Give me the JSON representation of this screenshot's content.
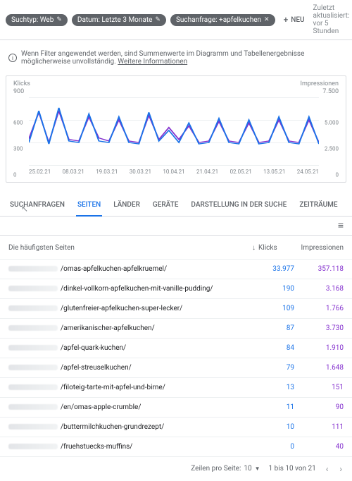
{
  "topbar": {
    "chips": [
      {
        "label": "Suchtyp: Web",
        "trailing": "pen"
      },
      {
        "label": "Datum: Letzte 3 Monate",
        "trailing": "pen"
      },
      {
        "label": "Suchanfrage: +apfelkuchen",
        "trailing": "x"
      }
    ],
    "neu_label": "NEU",
    "updated_label": "Zuletzt aktualisiert: vor 5 Stunden"
  },
  "warning": {
    "text": "Wenn Filter angewendet werden, sind Summenwerte im Diagramm und Tabellenergebnisse möglicherweise unvollständig.",
    "link": "Weitere Informationen"
  },
  "chart": {
    "left_axis": {
      "title": "Klicks",
      "max_label": "900",
      "ticks": [
        900,
        600,
        300,
        0
      ]
    },
    "right_axis": {
      "title": "Impressionen",
      "max_label": "7.500",
      "ticks": [
        7500,
        5000,
        2500,
        0
      ]
    },
    "x_labels": [
      "25.02.21",
      "08.03.21",
      "19.03.21",
      "30.03.21",
      "10.04.21",
      "21.04.21",
      "02.05.21",
      "13.05.21",
      "24.05.21"
    ],
    "colors": {
      "clicks": "#1a73e8",
      "impressions": "#8430ce",
      "grid": "#eceff1"
    },
    "clicks": [
      300,
      720,
      280,
      760,
      320,
      300,
      680,
      320,
      300,
      640,
      300,
      280,
      700,
      320,
      460,
      300,
      560,
      280,
      300,
      620,
      300,
      280,
      600,
      280,
      300,
      640,
      300,
      280,
      640,
      280
    ],
    "impressions": [
      350,
      700,
      300,
      720,
      340,
      320,
      640,
      360,
      320,
      600,
      320,
      300,
      660,
      340,
      500,
      340,
      520,
      300,
      320,
      580,
      320,
      300,
      560,
      300,
      320,
      600,
      320,
      300,
      600,
      300
    ]
  },
  "tabs": {
    "items": [
      "SUCHANFRAGEN",
      "SEITEN",
      "LÄNDER",
      "GERÄTE",
      "DARSTELLUNG IN DER SUCHE",
      "ZEITRÄUME"
    ],
    "active_index": 1
  },
  "table": {
    "header": {
      "page": "Die häufigsten Seiten",
      "klicks": "Klicks",
      "impressionen": "Impressionen"
    },
    "rows": [
      {
        "slug": "/omas-apfelkuchen-apfelkruemel/",
        "klicks": "33.977",
        "impr": "357.118"
      },
      {
        "slug": "/dinkel-vollkorn-apfelkuchen-mit-vanille-pudding/",
        "klicks": "190",
        "impr": "3.168"
      },
      {
        "slug": "/glutenfreier-apfelkuchen-super-lecker/",
        "klicks": "109",
        "impr": "1.766"
      },
      {
        "slug": "/amerikanischer-apfelkuchen/",
        "klicks": "87",
        "impr": "3.730"
      },
      {
        "slug": "/apfel-quark-kuchen/",
        "klicks": "84",
        "impr": "1.910"
      },
      {
        "slug": "/apfel-streuselkuchen/",
        "klicks": "79",
        "impr": "1.648"
      },
      {
        "slug": "/filoteig-tarte-mit-apfel-und-birne/",
        "klicks": "13",
        "impr": "151"
      },
      {
        "slug": "/en/omas-apple-crumble/",
        "klicks": "11",
        "impr": "90"
      },
      {
        "slug": "/buttermilchkuchen-grundrezept/",
        "klicks": "10",
        "impr": "111"
      },
      {
        "slug": "/fruehstuecks-muffins/",
        "klicks": "0",
        "impr": "40"
      }
    ]
  },
  "pager": {
    "rows_label": "Zeilen pro Seite:",
    "rows_value": "10",
    "range_label": "1 bis 10 von 21"
  }
}
